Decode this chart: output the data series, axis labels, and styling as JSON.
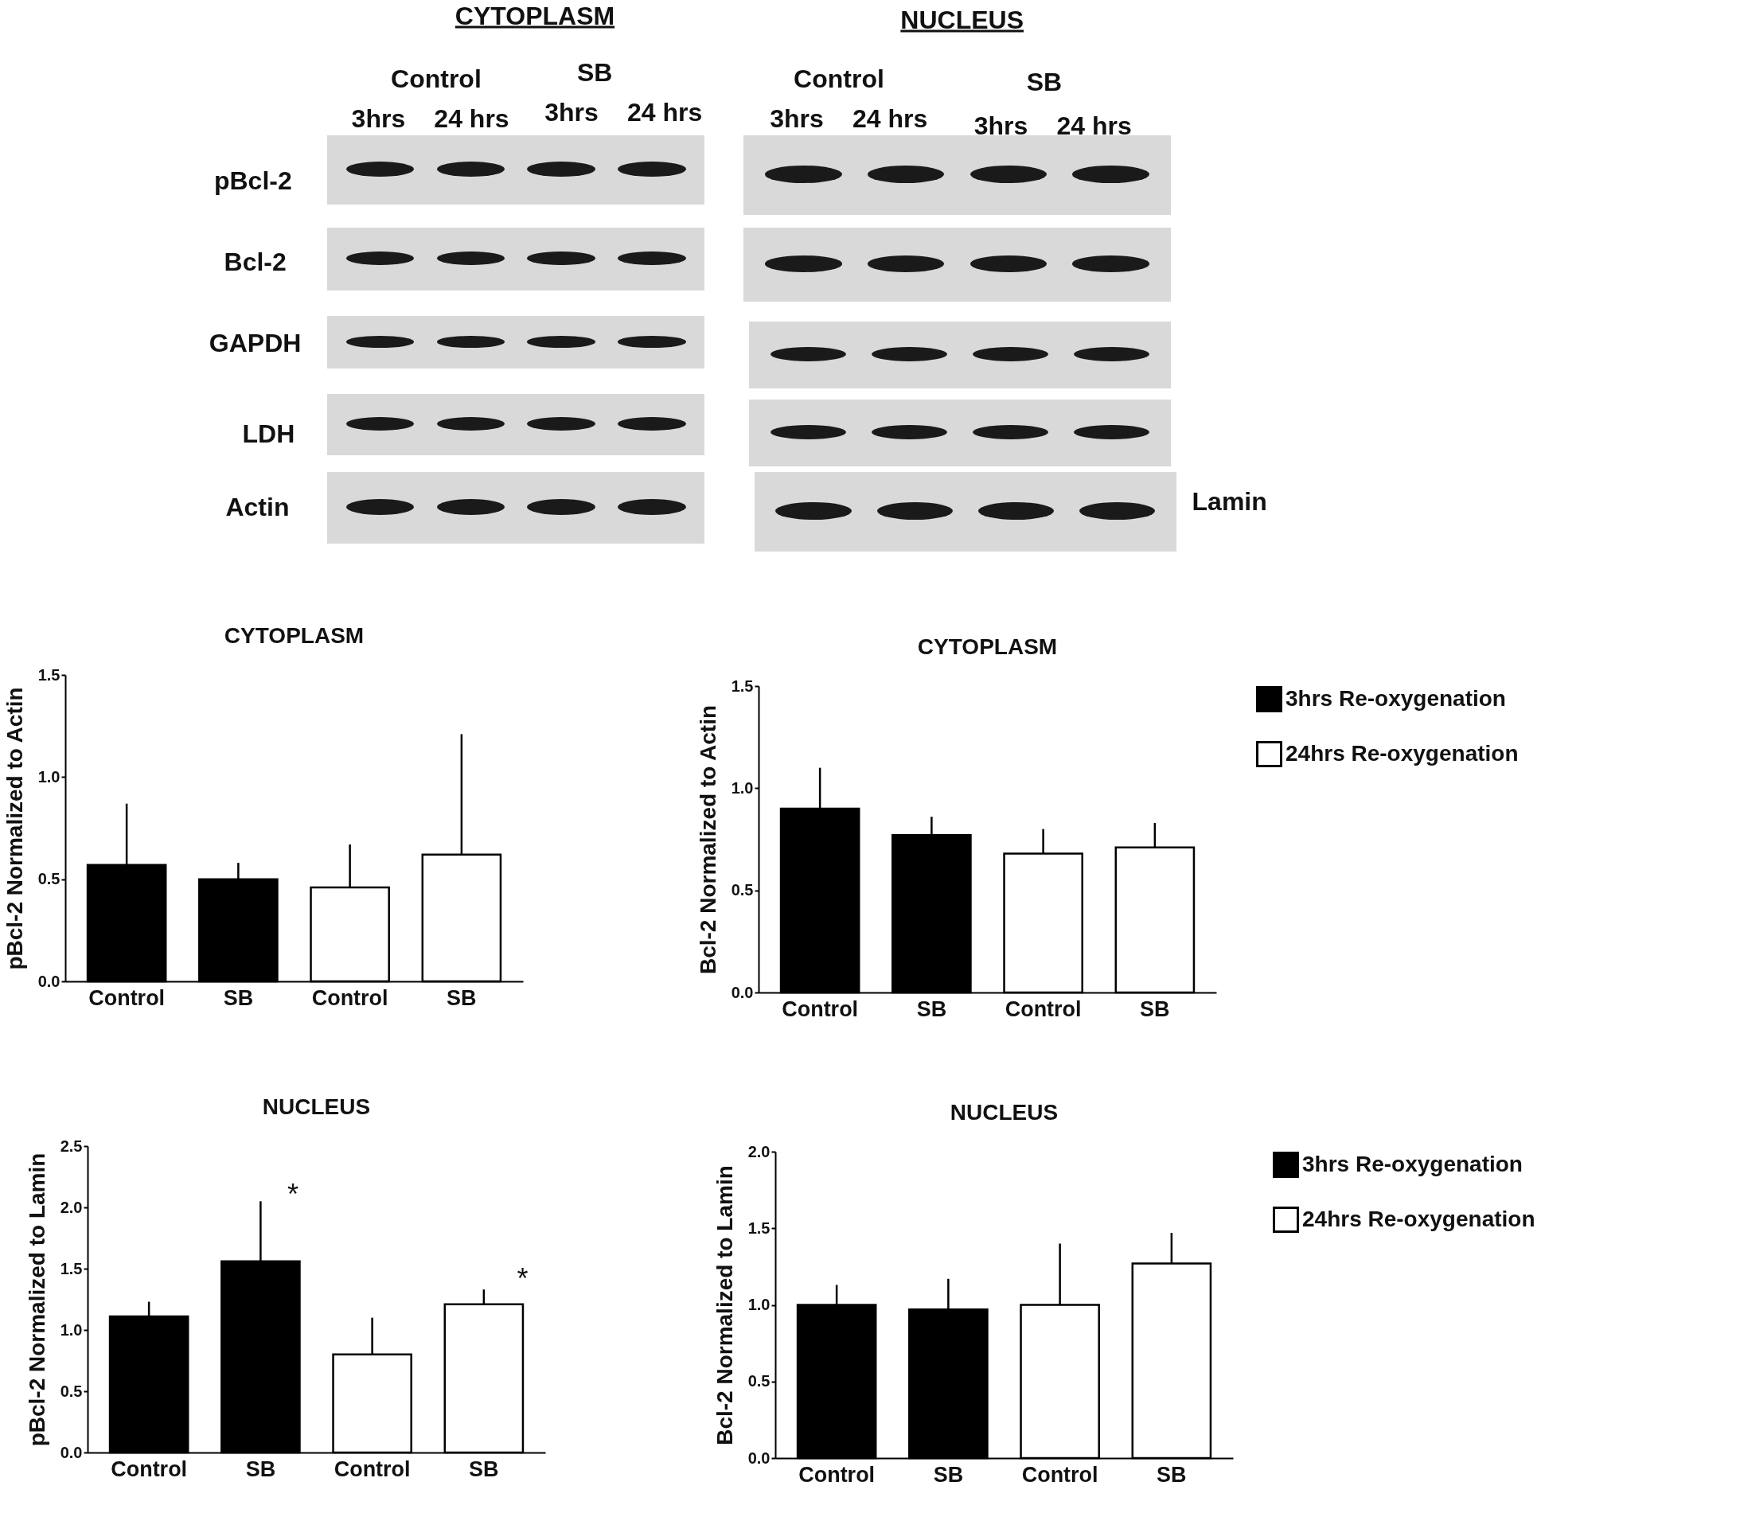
{
  "chart_data": [
    {
      "type": "other",
      "annotations": [
        "CYTOPLASM",
        "NUCLEUS",
        "Control",
        "SB",
        "3hrs",
        "24 hrs",
        "3hrs",
        "24 hrs",
        "Control",
        "SB",
        "3hrs",
        "24 hrs",
        "3hrs",
        "24 hrs",
        "pBcl-2",
        "Bcl-2",
        "GAPDH",
        "LDH",
        "Actin",
        "Lamin"
      ]
    },
    {
      "type": "bar",
      "title": "CYTOPLASM",
      "ylabel": "pBcl-2 Normalized to Actin",
      "categories": [
        "Control",
        "SB",
        "Control",
        "SB"
      ],
      "series": [
        {
          "color": "#000000",
          "values": [
            0.57,
            0.5,
            null,
            null
          ],
          "errors": [
            [
              0.57,
              0.87
            ],
            [
              0.5,
              0.58
            ],
            null,
            null
          ]
        },
        {
          "color": "#ffffff",
          "values": [
            null,
            null,
            0.46,
            0.62
          ],
          "errors": [
            null,
            null,
            [
              0.46,
              0.67
            ],
            [
              0.62,
              1.21
            ]
          ]
        }
      ],
      "ylim": [
        0,
        1.5
      ],
      "yticks": [
        {
          "value": 0,
          "label": "0.0"
        },
        0.5,
        {
          "value": 1,
          "label": "1.0"
        },
        1.5
      ],
      "legend": false
    },
    {
      "type": "bar",
      "title": "CYTOPLASM",
      "ylabel": "Bcl-2 Normalized to Actin",
      "categories": [
        "Control",
        "SB",
        "Control",
        "SB"
      ],
      "series": [
        {
          "name": "3hrs Re-oxygenation",
          "color": "#000000",
          "values": [
            0.9,
            0.77,
            null,
            null
          ],
          "errors": [
            [
              0.9,
              1.1
            ],
            [
              0.77,
              0.86
            ],
            null,
            null
          ]
        },
        {
          "name": "24hrs Re-oxygenation",
          "color": "#ffffff",
          "values": [
            null,
            null,
            0.68,
            0.71
          ],
          "errors": [
            null,
            null,
            [
              0.68,
              0.8
            ],
            [
              0.71,
              0.83
            ]
          ]
        }
      ],
      "ylim": [
        0,
        1.5
      ],
      "yticks": [
        {
          "value": 0,
          "label": "0.0"
        },
        0.5,
        {
          "value": 1,
          "label": "1.0"
        },
        1.5
      ],
      "legend": "top right"
    },
    {
      "type": "bar",
      "title": "NUCLEUS",
      "ylabel": "pBcl-2 Normalized to Lamin",
      "categories": [
        "Control",
        "SB",
        "Control",
        "SB"
      ],
      "series": [
        {
          "color": "#000000",
          "values": [
            1.11,
            1.56,
            null,
            null
          ],
          "errors": [
            [
              1.11,
              1.23
            ],
            [
              1.56,
              2.05
            ],
            null,
            null
          ]
        },
        {
          "color": "#ffffff",
          "values": [
            null,
            null,
            0.8,
            1.21
          ],
          "errors": [
            null,
            null,
            [
              0.8,
              1.1
            ],
            [
              1.21,
              1.33
            ]
          ]
        }
      ],
      "ylim": [
        0,
        2.5
      ],
      "yticks": [
        {
          "value": 0,
          "label": "0.0"
        },
        0.5,
        {
          "value": 1,
          "label": "1.0"
        },
        1.5,
        {
          "value": 2,
          "label": "2.0"
        },
        2.5
      ],
      "legend": false,
      "annotations": [
        "*",
        "*"
      ]
    },
    {
      "type": "bar",
      "title": "NUCLEUS",
      "ylabel": "Bcl-2 Normalized to Lamin",
      "categories": [
        "Control",
        "SB",
        "Control",
        "SB"
      ],
      "series": [
        {
          "name": "3hrs Re-oxygenation",
          "color": "#000000",
          "values": [
            1.0,
            0.97,
            null,
            null
          ],
          "errors": [
            [
              1.0,
              1.13
            ],
            [
              0.97,
              1.17
            ],
            null,
            null
          ]
        },
        {
          "name": "24hrs Re-oxygenation",
          "color": "#ffffff",
          "values": [
            null,
            null,
            1.0,
            1.27
          ],
          "errors": [
            null,
            null,
            [
              1.0,
              1.4
            ],
            [
              1.27,
              1.47
            ]
          ]
        }
      ],
      "ylim": [
        0,
        2
      ],
      "yticks": [
        {
          "value": 0,
          "label": "0.0"
        },
        0.5,
        {
          "value": 1,
          "label": "1.0"
        },
        1.5,
        {
          "value": 2,
          "label": "2.0"
        }
      ],
      "legend": "top right"
    }
  ]
}
